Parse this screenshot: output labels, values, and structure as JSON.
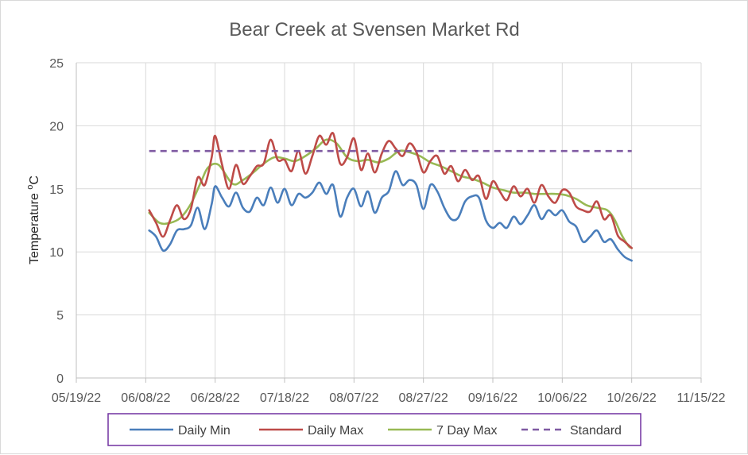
{
  "chart_data": {
    "type": "line",
    "title": "Bear Creek at Svensen Market Rd",
    "xlabel": "",
    "ylabel_main": "Temperature ",
    "ylabel_sup": "o",
    "ylabel_unit": "C",
    "ylim": [
      0,
      25
    ],
    "yticks": [
      0,
      5,
      10,
      15,
      20,
      25
    ],
    "xlim": [
      "2022-05-19",
      "2022-11-15"
    ],
    "xticks": [
      "2022-05-19",
      "2022-06-08",
      "2022-06-28",
      "2022-07-18",
      "2022-08-07",
      "2022-08-27",
      "2022-09-16",
      "2022-10-06",
      "2022-10-26",
      "2022-11-15"
    ],
    "xtick_labels": [
      "05/19/22",
      "06/08/22",
      "06/28/22",
      "07/18/22",
      "08/07/22",
      "08/27/22",
      "09/16/22",
      "10/06/22",
      "10/26/22",
      "11/15/22"
    ],
    "grid": true,
    "legend_position": "bottom",
    "series": [
      {
        "name": "Daily Min",
        "color": "#4a7ebb",
        "dash": "solid",
        "points": [
          [
            "2022-06-09",
            11.7
          ],
          [
            "2022-06-11",
            11.2
          ],
          [
            "2022-06-13",
            10.1
          ],
          [
            "2022-06-15",
            10.6
          ],
          [
            "2022-06-17",
            11.7
          ],
          [
            "2022-06-19",
            11.8
          ],
          [
            "2022-06-21",
            12.1
          ],
          [
            "2022-06-23",
            13.5
          ],
          [
            "2022-06-25",
            11.8
          ],
          [
            "2022-06-27",
            13.8
          ],
          [
            "2022-06-28",
            15.2
          ],
          [
            "2022-06-30",
            14.3
          ],
          [
            "2022-07-02",
            13.6
          ],
          [
            "2022-07-04",
            14.7
          ],
          [
            "2022-07-06",
            13.5
          ],
          [
            "2022-07-08",
            13.2
          ],
          [
            "2022-07-10",
            14.3
          ],
          [
            "2022-07-12",
            13.7
          ],
          [
            "2022-07-14",
            15.1
          ],
          [
            "2022-07-16",
            13.9
          ],
          [
            "2022-07-18",
            15.0
          ],
          [
            "2022-07-20",
            13.7
          ],
          [
            "2022-07-22",
            14.6
          ],
          [
            "2022-07-24",
            14.3
          ],
          [
            "2022-07-26",
            14.7
          ],
          [
            "2022-07-28",
            15.5
          ],
          [
            "2022-07-30",
            14.6
          ],
          [
            "2022-08-01",
            15.3
          ],
          [
            "2022-08-03",
            12.8
          ],
          [
            "2022-08-05",
            14.3
          ],
          [
            "2022-08-07",
            15.0
          ],
          [
            "2022-08-09",
            13.6
          ],
          [
            "2022-08-11",
            14.8
          ],
          [
            "2022-08-13",
            13.1
          ],
          [
            "2022-08-15",
            14.3
          ],
          [
            "2022-08-17",
            14.8
          ],
          [
            "2022-08-19",
            16.4
          ],
          [
            "2022-08-21",
            15.3
          ],
          [
            "2022-08-23",
            15.7
          ],
          [
            "2022-08-25",
            15.3
          ],
          [
            "2022-08-27",
            13.4
          ],
          [
            "2022-08-29",
            15.3
          ],
          [
            "2022-08-31",
            14.8
          ],
          [
            "2022-09-02",
            13.5
          ],
          [
            "2022-09-04",
            12.6
          ],
          [
            "2022-09-06",
            12.7
          ],
          [
            "2022-09-08",
            14.0
          ],
          [
            "2022-09-10",
            14.4
          ],
          [
            "2022-09-12",
            14.3
          ],
          [
            "2022-09-14",
            12.5
          ],
          [
            "2022-09-16",
            11.9
          ],
          [
            "2022-09-18",
            12.3
          ],
          [
            "2022-09-20",
            11.9
          ],
          [
            "2022-09-22",
            12.8
          ],
          [
            "2022-09-24",
            12.2
          ],
          [
            "2022-09-26",
            12.9
          ],
          [
            "2022-09-28",
            13.7
          ],
          [
            "2022-09-30",
            12.6
          ],
          [
            "2022-10-02",
            13.3
          ],
          [
            "2022-10-04",
            12.9
          ],
          [
            "2022-10-06",
            13.3
          ],
          [
            "2022-10-08",
            12.4
          ],
          [
            "2022-10-10",
            12.0
          ],
          [
            "2022-10-12",
            10.8
          ],
          [
            "2022-10-14",
            11.2
          ],
          [
            "2022-10-16",
            11.7
          ],
          [
            "2022-10-18",
            10.8
          ],
          [
            "2022-10-20",
            11.0
          ],
          [
            "2022-10-22",
            10.2
          ],
          [
            "2022-10-24",
            9.6
          ],
          [
            "2022-10-26",
            9.3
          ]
        ]
      },
      {
        "name": "Daily Max",
        "color": "#be4b48",
        "dash": "solid",
        "points": [
          [
            "2022-06-09",
            13.3
          ],
          [
            "2022-06-11",
            12.3
          ],
          [
            "2022-06-13",
            11.2
          ],
          [
            "2022-06-15",
            12.5
          ],
          [
            "2022-06-17",
            13.7
          ],
          [
            "2022-06-19",
            12.6
          ],
          [
            "2022-06-21",
            13.4
          ],
          [
            "2022-06-23",
            15.9
          ],
          [
            "2022-06-25",
            15.3
          ],
          [
            "2022-06-27",
            17.5
          ],
          [
            "2022-06-28",
            19.2
          ],
          [
            "2022-06-30",
            16.9
          ],
          [
            "2022-07-02",
            15.0
          ],
          [
            "2022-07-04",
            16.9
          ],
          [
            "2022-07-06",
            15.4
          ],
          [
            "2022-07-08",
            16.0
          ],
          [
            "2022-07-10",
            16.8
          ],
          [
            "2022-07-12",
            17.0
          ],
          [
            "2022-07-14",
            18.9
          ],
          [
            "2022-07-16",
            17.3
          ],
          [
            "2022-07-18",
            17.3
          ],
          [
            "2022-07-20",
            16.4
          ],
          [
            "2022-07-22",
            18.0
          ],
          [
            "2022-07-24",
            16.2
          ],
          [
            "2022-07-26",
            17.6
          ],
          [
            "2022-07-28",
            19.2
          ],
          [
            "2022-07-30",
            18.5
          ],
          [
            "2022-08-01",
            19.4
          ],
          [
            "2022-08-03",
            17.0
          ],
          [
            "2022-08-05",
            17.5
          ],
          [
            "2022-08-07",
            19.0
          ],
          [
            "2022-08-09",
            16.5
          ],
          [
            "2022-08-11",
            17.8
          ],
          [
            "2022-08-13",
            16.3
          ],
          [
            "2022-08-15",
            17.8
          ],
          [
            "2022-08-17",
            18.8
          ],
          [
            "2022-08-19",
            18.2
          ],
          [
            "2022-08-21",
            17.6
          ],
          [
            "2022-08-23",
            18.6
          ],
          [
            "2022-08-25",
            17.9
          ],
          [
            "2022-08-27",
            16.3
          ],
          [
            "2022-08-29",
            17.2
          ],
          [
            "2022-08-31",
            17.6
          ],
          [
            "2022-09-02",
            16.2
          ],
          [
            "2022-09-04",
            16.8
          ],
          [
            "2022-09-06",
            15.6
          ],
          [
            "2022-09-08",
            16.5
          ],
          [
            "2022-09-10",
            15.7
          ],
          [
            "2022-09-12",
            16.0
          ],
          [
            "2022-09-14",
            14.2
          ],
          [
            "2022-09-16",
            15.6
          ],
          [
            "2022-09-18",
            14.8
          ],
          [
            "2022-09-20",
            14.1
          ],
          [
            "2022-09-22",
            15.2
          ],
          [
            "2022-09-24",
            14.4
          ],
          [
            "2022-09-26",
            15.0
          ],
          [
            "2022-09-28",
            13.9
          ],
          [
            "2022-09-30",
            15.3
          ],
          [
            "2022-10-02",
            14.4
          ],
          [
            "2022-10-04",
            13.9
          ],
          [
            "2022-10-06",
            14.9
          ],
          [
            "2022-10-08",
            14.7
          ],
          [
            "2022-10-10",
            13.6
          ],
          [
            "2022-10-12",
            13.3
          ],
          [
            "2022-10-14",
            13.2
          ],
          [
            "2022-10-16",
            14.0
          ],
          [
            "2022-10-18",
            12.6
          ],
          [
            "2022-10-20",
            12.9
          ],
          [
            "2022-10-22",
            11.3
          ],
          [
            "2022-10-24",
            10.8
          ],
          [
            "2022-10-26",
            10.3
          ]
        ]
      },
      {
        "name": "7 Day Max",
        "color": "#98b954",
        "dash": "solid",
        "points": [
          [
            "2022-06-09",
            13.1
          ],
          [
            "2022-06-12",
            12.3
          ],
          [
            "2022-06-15",
            12.3
          ],
          [
            "2022-06-18",
            12.7
          ],
          [
            "2022-06-21",
            13.8
          ],
          [
            "2022-06-24",
            15.6
          ],
          [
            "2022-06-26",
            16.7
          ],
          [
            "2022-06-29",
            16.9
          ],
          [
            "2022-07-03",
            15.4
          ],
          [
            "2022-07-06",
            15.7
          ],
          [
            "2022-07-09",
            16.3
          ],
          [
            "2022-07-12",
            17.0
          ],
          [
            "2022-07-15",
            17.5
          ],
          [
            "2022-07-18",
            17.4
          ],
          [
            "2022-07-21",
            17.2
          ],
          [
            "2022-07-24",
            17.6
          ],
          [
            "2022-07-27",
            18.2
          ],
          [
            "2022-07-30",
            18.9
          ],
          [
            "2022-08-02",
            18.6
          ],
          [
            "2022-08-05",
            17.5
          ],
          [
            "2022-08-08",
            17.2
          ],
          [
            "2022-08-11",
            17.3
          ],
          [
            "2022-08-14",
            17.1
          ],
          [
            "2022-08-17",
            17.4
          ],
          [
            "2022-08-20",
            18.0
          ],
          [
            "2022-08-23",
            17.9
          ],
          [
            "2022-08-26",
            17.6
          ],
          [
            "2022-08-29",
            17.1
          ],
          [
            "2022-09-01",
            16.8
          ],
          [
            "2022-09-04",
            16.4
          ],
          [
            "2022-09-07",
            16.0
          ],
          [
            "2022-09-10",
            15.8
          ],
          [
            "2022-09-13",
            15.5
          ],
          [
            "2022-09-16",
            15.1
          ],
          [
            "2022-09-19",
            14.9
          ],
          [
            "2022-09-22",
            14.7
          ],
          [
            "2022-09-25",
            14.7
          ],
          [
            "2022-09-28",
            14.6
          ],
          [
            "2022-10-01",
            14.6
          ],
          [
            "2022-10-04",
            14.6
          ],
          [
            "2022-10-07",
            14.5
          ],
          [
            "2022-10-10",
            14.2
          ],
          [
            "2022-10-13",
            13.7
          ],
          [
            "2022-10-16",
            13.5
          ],
          [
            "2022-10-19",
            13.3
          ],
          [
            "2022-10-21",
            12.6
          ],
          [
            "2022-10-23",
            11.4
          ],
          [
            "2022-10-25",
            10.5
          ],
          [
            "2022-10-26",
            10.3
          ]
        ]
      },
      {
        "name": "Standard",
        "color": "#7f5aa2",
        "dash": "dashed",
        "points": [
          [
            "2022-06-09",
            18.0
          ],
          [
            "2022-10-26",
            18.0
          ]
        ]
      }
    ]
  }
}
